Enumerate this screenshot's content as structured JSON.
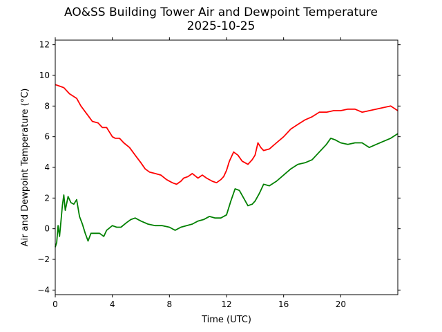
{
  "chart_data": {
    "type": "line",
    "title": "AO&SS Building Tower Air and Dewpoint Temperature",
    "subtitle": "2025-10-25",
    "xlabel": "Time (UTC)",
    "ylabel": "Air and Dewpoint Temperature (°C)",
    "xlim": [
      0,
      24
    ],
    "ylim": [
      -4.3,
      12.3
    ],
    "x_ticks": [
      0,
      4,
      8,
      12,
      16,
      20
    ],
    "y_ticks": [
      -4,
      -2,
      0,
      2,
      4,
      6,
      8,
      10,
      12
    ],
    "grid": false,
    "series": [
      {
        "color": "#ff0000",
        "x": [
          0,
          0.3,
          0.6,
          1.0,
          1.5,
          1.8,
          2.2,
          2.6,
          3.0,
          3.3,
          3.6,
          4.0,
          4.2,
          4.5,
          4.8,
          5.2,
          5.6,
          6.0,
          6.3,
          6.6,
          7.0,
          7.4,
          7.8,
          8.2,
          8.5,
          8.8,
          9.0,
          9.3,
          9.6,
          10.0,
          10.3,
          10.6,
          11.0,
          11.3,
          11.6,
          11.8,
          12.0,
          12.2,
          12.5,
          12.8,
          13.1,
          13.5,
          13.8,
          14.0,
          14.2,
          14.4,
          14.6,
          15.0,
          15.5,
          16.0,
          16.5,
          17.0,
          17.5,
          18.0,
          18.5,
          19.0,
          19.5,
          20.0,
          20.5,
          21.0,
          21.5,
          22.0,
          22.5,
          23.0,
          23.5,
          24.0
        ],
        "values": [
          9.4,
          9.3,
          9.2,
          8.8,
          8.5,
          8.0,
          7.5,
          7.0,
          6.9,
          6.6,
          6.6,
          6.0,
          5.9,
          5.9,
          5.6,
          5.3,
          4.8,
          4.3,
          3.9,
          3.7,
          3.6,
          3.5,
          3.2,
          3.0,
          2.9,
          3.1,
          3.3,
          3.4,
          3.6,
          3.3,
          3.5,
          3.3,
          3.1,
          3.0,
          3.2,
          3.4,
          3.8,
          4.4,
          5.0,
          4.8,
          4.4,
          4.2,
          4.5,
          4.8,
          5.6,
          5.3,
          5.1,
          5.2,
          5.6,
          6.0,
          6.5,
          6.8,
          7.1,
          7.3,
          7.6,
          7.6,
          7.7,
          7.7,
          7.8,
          7.8,
          7.6,
          7.7,
          7.8,
          7.9,
          8.0,
          7.7
        ]
      },
      {
        "color": "#008000",
        "x": [
          0,
          0.1,
          0.2,
          0.3,
          0.4,
          0.5,
          0.6,
          0.7,
          0.9,
          1.1,
          1.3,
          1.5,
          1.7,
          1.9,
          2.1,
          2.3,
          2.5,
          2.8,
          3.1,
          3.4,
          3.6,
          4.0,
          4.3,
          4.6,
          5.0,
          5.3,
          5.6,
          6.0,
          6.5,
          7.0,
          7.5,
          8.0,
          8.4,
          8.8,
          9.2,
          9.6,
          10.0,
          10.4,
          10.8,
          11.2,
          11.6,
          12.0,
          12.3,
          12.6,
          12.9,
          13.2,
          13.5,
          13.8,
          14.0,
          14.3,
          14.6,
          15.0,
          15.5,
          16.0,
          16.5,
          17.0,
          17.5,
          18.0,
          18.5,
          19.0,
          19.3,
          19.6,
          20.0,
          20.5,
          21.0,
          21.5,
          22.0,
          22.5,
          23.0,
          23.5,
          24.0
        ],
        "values": [
          -1.2,
          -0.9,
          0.2,
          -0.5,
          0.5,
          1.5,
          2.2,
          1.2,
          2.1,
          1.7,
          1.6,
          1.9,
          0.8,
          0.3,
          -0.3,
          -0.8,
          -0.3,
          -0.3,
          -0.3,
          -0.5,
          -0.1,
          0.2,
          0.1,
          0.1,
          0.4,
          0.6,
          0.7,
          0.5,
          0.3,
          0.2,
          0.2,
          0.1,
          -0.1,
          0.1,
          0.2,
          0.3,
          0.5,
          0.6,
          0.8,
          0.7,
          0.7,
          0.9,
          1.8,
          2.6,
          2.5,
          2.0,
          1.5,
          1.6,
          1.8,
          2.3,
          2.9,
          2.8,
          3.1,
          3.5,
          3.9,
          4.2,
          4.3,
          4.5,
          5.0,
          5.5,
          5.9,
          5.8,
          5.6,
          5.5,
          5.6,
          5.6,
          5.3,
          5.5,
          5.7,
          5.9,
          6.2
        ]
      }
    ]
  }
}
